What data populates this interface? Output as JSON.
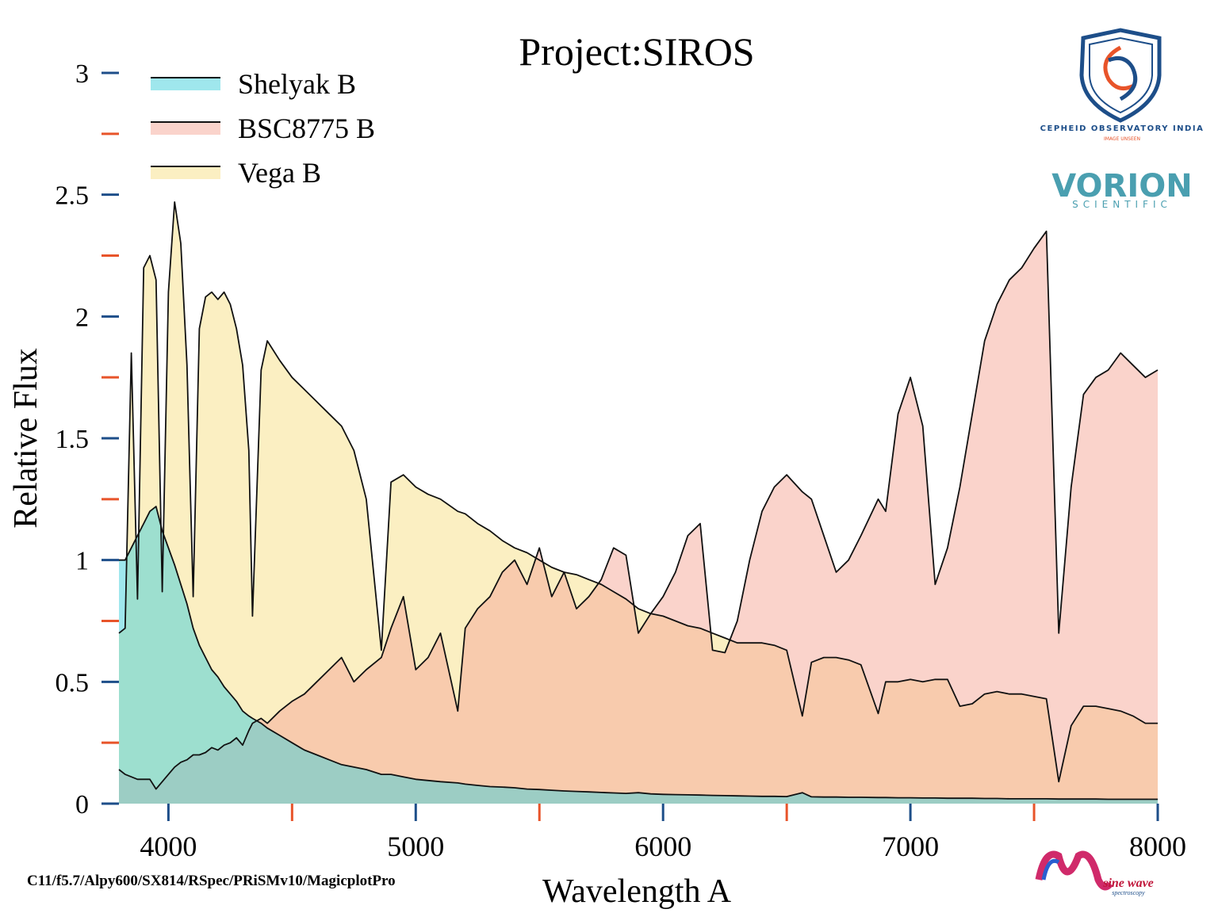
{
  "chart_data": {
    "type": "area",
    "title": "Project:SIROS",
    "xlabel": "Wavelength A",
    "ylabel": "Relative Flux",
    "note": "C11/f5.7/Alpy600/SX814/RSpec/PRiSMv10/MagicplotPro",
    "xlim": [
      3800,
      8000
    ],
    "ylim": [
      0,
      3
    ],
    "xticks": [
      4000,
      5000,
      6000,
      7000,
      8000
    ],
    "yticks": [
      0,
      0.5,
      1,
      1.5,
      2,
      2.5,
      3
    ],
    "xminorticks": [
      4500,
      5500,
      6500,
      7500
    ],
    "yminorticks": [
      0.25,
      0.75,
      1.25,
      1.75,
      2.25,
      2.75
    ],
    "major_tick_color": "#1d4e89",
    "minor_tick_color": "#e8542a",
    "legend": "upper left",
    "x": [
      3800,
      3825,
      3850,
      3875,
      3900,
      3925,
      3950,
      3975,
      4000,
      4025,
      4050,
      4075,
      4100,
      4125,
      4150,
      4175,
      4200,
      4225,
      4250,
      4275,
      4300,
      4325,
      4340,
      4375,
      4400,
      4450,
      4500,
      4550,
      4600,
      4650,
      4700,
      4750,
      4800,
      4861,
      4900,
      4950,
      5000,
      5050,
      5100,
      5170,
      5200,
      5250,
      5300,
      5350,
      5400,
      5450,
      5500,
      5550,
      5600,
      5650,
      5700,
      5750,
      5800,
      5850,
      5900,
      5950,
      6000,
      6050,
      6100,
      6150,
      6200,
      6250,
      6300,
      6350,
      6400,
      6450,
      6500,
      6563,
      6600,
      6650,
      6700,
      6750,
      6800,
      6870,
      6900,
      6950,
      7000,
      7050,
      7100,
      7150,
      7200,
      7250,
      7300,
      7350,
      7400,
      7450,
      7500,
      7550,
      7600,
      7650,
      7700,
      7750,
      7800,
      7850,
      7900,
      7950,
      8000
    ],
    "series": [
      {
        "name": "Shelyak B",
        "color": "#3fcfdc",
        "values": [
          1.0,
          1.0,
          1.05,
          1.1,
          1.15,
          1.2,
          1.22,
          1.12,
          1.05,
          0.98,
          0.9,
          0.82,
          0.72,
          0.65,
          0.6,
          0.55,
          0.52,
          0.48,
          0.45,
          0.42,
          0.38,
          0.36,
          0.35,
          0.33,
          0.31,
          0.28,
          0.25,
          0.22,
          0.2,
          0.18,
          0.16,
          0.15,
          0.14,
          0.12,
          0.12,
          0.11,
          0.1,
          0.095,
          0.09,
          0.085,
          0.08,
          0.075,
          0.07,
          0.068,
          0.065,
          0.06,
          0.058,
          0.055,
          0.052,
          0.05,
          0.048,
          0.046,
          0.044,
          0.042,
          0.045,
          0.04,
          0.038,
          0.037,
          0.036,
          0.035,
          0.034,
          0.033,
          0.032,
          0.031,
          0.03,
          0.03,
          0.029,
          0.045,
          0.028,
          0.027,
          0.027,
          0.026,
          0.026,
          0.025,
          0.025,
          0.024,
          0.024,
          0.023,
          0.023,
          0.022,
          0.022,
          0.022,
          0.021,
          0.021,
          0.02,
          0.02,
          0.02,
          0.02,
          0.019,
          0.019,
          0.019,
          0.019,
          0.018,
          0.018,
          0.018,
          0.018,
          0.018
        ]
      },
      {
        "name": "BSC8775 B",
        "color": "#f5a898",
        "values": [
          0.14,
          0.12,
          0.11,
          0.1,
          0.1,
          0.1,
          0.06,
          0.09,
          0.12,
          0.15,
          0.17,
          0.18,
          0.2,
          0.2,
          0.21,
          0.23,
          0.22,
          0.24,
          0.25,
          0.27,
          0.24,
          0.3,
          0.33,
          0.35,
          0.33,
          0.38,
          0.42,
          0.45,
          0.5,
          0.55,
          0.6,
          0.5,
          0.55,
          0.6,
          0.72,
          0.85,
          0.55,
          0.6,
          0.7,
          0.38,
          0.72,
          0.8,
          0.85,
          0.95,
          1.0,
          0.9,
          1.05,
          0.85,
          0.95,
          0.8,
          0.85,
          0.92,
          1.05,
          1.02,
          0.7,
          0.78,
          0.85,
          0.95,
          1.1,
          1.15,
          0.63,
          0.62,
          0.75,
          1.0,
          1.2,
          1.3,
          1.35,
          1.28,
          1.25,
          1.1,
          0.95,
          1.0,
          1.1,
          1.25,
          1.2,
          1.6,
          1.75,
          1.55,
          0.9,
          1.05,
          1.3,
          1.6,
          1.9,
          2.05,
          2.15,
          2.2,
          2.28,
          2.35,
          0.7,
          1.3,
          1.68,
          1.75,
          1.78,
          1.85,
          1.8,
          1.75,
          1.78
        ]
      },
      {
        "name": "Vega B",
        "color": "#f8df86",
        "values": [
          0.7,
          0.72,
          1.85,
          0.84,
          2.2,
          2.25,
          2.15,
          0.87,
          2.1,
          2.47,
          2.3,
          1.8,
          0.85,
          1.95,
          2.08,
          2.1,
          2.07,
          2.1,
          2.05,
          1.95,
          1.8,
          1.45,
          0.77,
          1.78,
          1.9,
          1.82,
          1.75,
          1.7,
          1.65,
          1.6,
          1.55,
          1.45,
          1.25,
          0.63,
          1.32,
          1.35,
          1.3,
          1.27,
          1.25,
          1.2,
          1.19,
          1.15,
          1.12,
          1.08,
          1.05,
          1.03,
          1.0,
          0.97,
          0.95,
          0.94,
          0.92,
          0.9,
          0.87,
          0.84,
          0.8,
          0.78,
          0.77,
          0.75,
          0.73,
          0.72,
          0.7,
          0.68,
          0.66,
          0.66,
          0.66,
          0.65,
          0.63,
          0.36,
          0.58,
          0.6,
          0.6,
          0.59,
          0.57,
          0.37,
          0.5,
          0.5,
          0.51,
          0.5,
          0.51,
          0.51,
          0.4,
          0.41,
          0.45,
          0.46,
          0.45,
          0.45,
          0.44,
          0.43,
          0.09,
          0.32,
          0.4,
          0.4,
          0.39,
          0.38,
          0.36,
          0.33,
          0.33
        ]
      }
    ]
  },
  "logos": {
    "cepheid": "CEPHEID OBSERVATORY INDIA",
    "cepheid_tag": "IMAGE UNSEEN",
    "vorion": "VORION",
    "vorion_tag": "SCIENTIFIC",
    "sinewave": "sine wave",
    "sinewave_tag": "spectroscopy"
  }
}
